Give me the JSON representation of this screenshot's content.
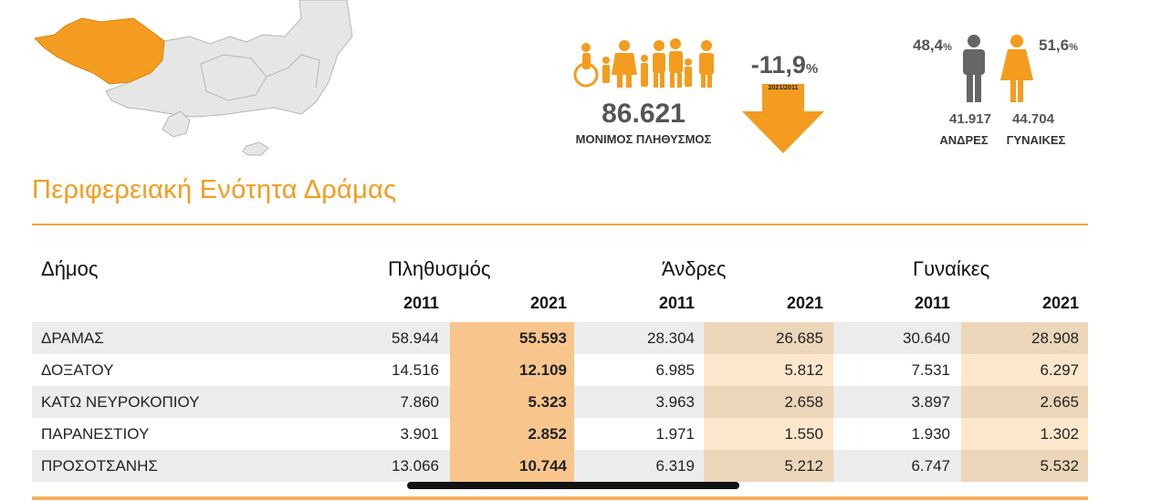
{
  "header": {
    "population_value": "86.621",
    "population_label": "ΜΟΝΙΜΟΣ ΠΛΗΘΥΣΜΟΣ",
    "change_value": "-11,9",
    "change_pct_sign": "%",
    "change_period": "2021/2011",
    "male_share": "48,4",
    "female_share": "51,6",
    "pct_sign": "%",
    "male_count": "41.917",
    "female_count": "44.704",
    "male_label": "ΑΝΔΡΕΣ",
    "female_label": "ΓΥΝΑΙΚΕΣ",
    "icons": [
      "map-icon",
      "people-group-icon",
      "down-arrow-icon",
      "male-person-icon",
      "female-person-icon"
    ]
  },
  "title": "Περιφερειακή Ενότητα Δράμας",
  "colors": {
    "accent": "#f39c1f",
    "highlight_pop": "#f8c68c",
    "highlight_sex_dark": "#ecd6b9",
    "highlight_sex_light": "#fce7cc",
    "row_gray": "#ececec"
  },
  "table": {
    "headers": {
      "municipality": "Δήμος",
      "population": "Πληθυσμός",
      "men": "Άνδρες",
      "women": "Γυναίκες"
    },
    "years": [
      "2011",
      "2021",
      "2011",
      "2021",
      "2011",
      "2021"
    ],
    "rows": [
      {
        "name": "ΔΡΑΜΑΣ",
        "pop2011": "58.944",
        "pop2021": "55.593",
        "men2011": "28.304",
        "men2021": "26.685",
        "women2011": "30.640",
        "women2021": "28.908"
      },
      {
        "name": "ΔΟΞΑΤΟΥ",
        "pop2011": "14.516",
        "pop2021": "12.109",
        "men2011": "6.985",
        "men2021": "5.812",
        "women2011": "7.531",
        "women2021": "6.297"
      },
      {
        "name": "ΚΑΤΩ ΝΕΥΡΟΚΟΠΙΟΥ",
        "pop2011": "7.860",
        "pop2021": "5.323",
        "men2011": "3.963",
        "men2021": "2.658",
        "women2011": "3.897",
        "women2021": "2.665"
      },
      {
        "name": "ΠΑΡΑΝΕΣΤΙΟΥ",
        "pop2011": "3.901",
        "pop2021": "2.852",
        "men2011": "1.971",
        "men2021": "1.550",
        "women2011": "1.930",
        "women2021": "1.302"
      },
      {
        "name": "ΠΡΟΣΟΤΣΑΝΗΣ",
        "pop2011": "13.066",
        "pop2021": "10.744",
        "men2011": "6.319",
        "men2021": "5.212",
        "women2011": "6.747",
        "women2021": "5.532"
      }
    ]
  }
}
